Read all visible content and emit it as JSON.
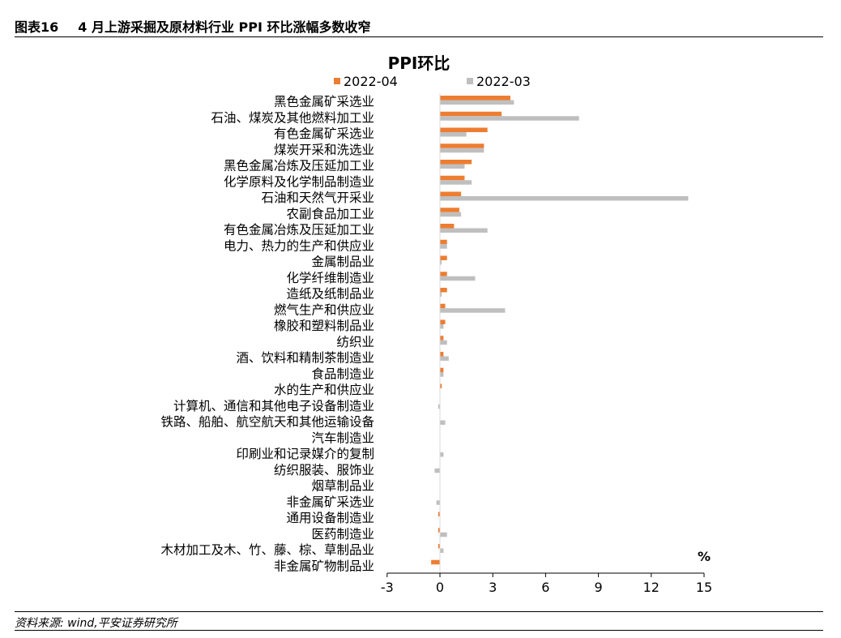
{
  "header": {
    "figure_no": "图表16",
    "title": "4 月上游采掘及原材料行业 PPI 环比涨幅多数收窄"
  },
  "source": "资料来源: wind,平安证券研究所",
  "colors": {
    "series_2022_04": "#ED7D31",
    "series_2022_03": "#BFBFBF"
  },
  "chart_data": {
    "type": "bar",
    "orientation": "horizontal",
    "title": "PPI环比",
    "unit_label": "%",
    "xlim": [
      -3,
      15
    ],
    "xticks": [
      -3,
      0,
      3,
      6,
      9,
      12,
      15
    ],
    "legend_position": "top",
    "grid": false,
    "categories": [
      "黑色金属矿采选业",
      "石油、煤炭及其他燃料加工业",
      "有色金属矿采选业",
      "煤炭开采和洗选业",
      "黑色金属冶炼及压延加工业",
      "化学原料及化学制品制造业",
      "石油和天然气开采业",
      "农副食品加工业",
      "有色金属冶炼及压延加工业",
      "电力、热力的生产和供应业",
      "金属制品业",
      "化学纤维制造业",
      "造纸及纸制品业",
      "燃气生产和供应业",
      "橡胶和塑料制品业",
      "纺织业",
      "酒、饮料和精制茶制造业",
      "食品制造业",
      "水的生产和供应业",
      "计算机、通信和其他电子设备制造业",
      "铁路、船舶、航空航天和其他运输设备",
      "汽车制造业",
      "印刷业和记录媒介的复制",
      "纺织服装、服饰业",
      "烟草制品业",
      "非金属矿采选业",
      "通用设备制造业",
      "医药制造业",
      "木材加工及木、竹、藤、棕、草制品业",
      "非金属矿物制品业"
    ],
    "series": [
      {
        "name": "2022-04",
        "values": [
          4.0,
          3.5,
          2.7,
          2.5,
          1.8,
          1.4,
          1.2,
          1.1,
          0.8,
          0.4,
          0.4,
          0.4,
          0.4,
          0.3,
          0.3,
          0.2,
          0.2,
          0.2,
          0.1,
          0.0,
          0.0,
          0.0,
          0.0,
          0.0,
          0.0,
          0.0,
          -0.1,
          -0.1,
          -0.1,
          -0.5
        ]
      },
      {
        "name": "2022-03",
        "values": [
          4.2,
          7.9,
          1.5,
          2.5,
          1.4,
          1.8,
          14.1,
          1.2,
          2.7,
          0.4,
          0.1,
          2.0,
          0.1,
          3.7,
          0.2,
          0.4,
          0.5,
          0.2,
          0.0,
          -0.1,
          0.3,
          0.0,
          0.2,
          -0.3,
          0.0,
          -0.2,
          0.0,
          0.4,
          0.2,
          0.0
        ]
      }
    ]
  }
}
